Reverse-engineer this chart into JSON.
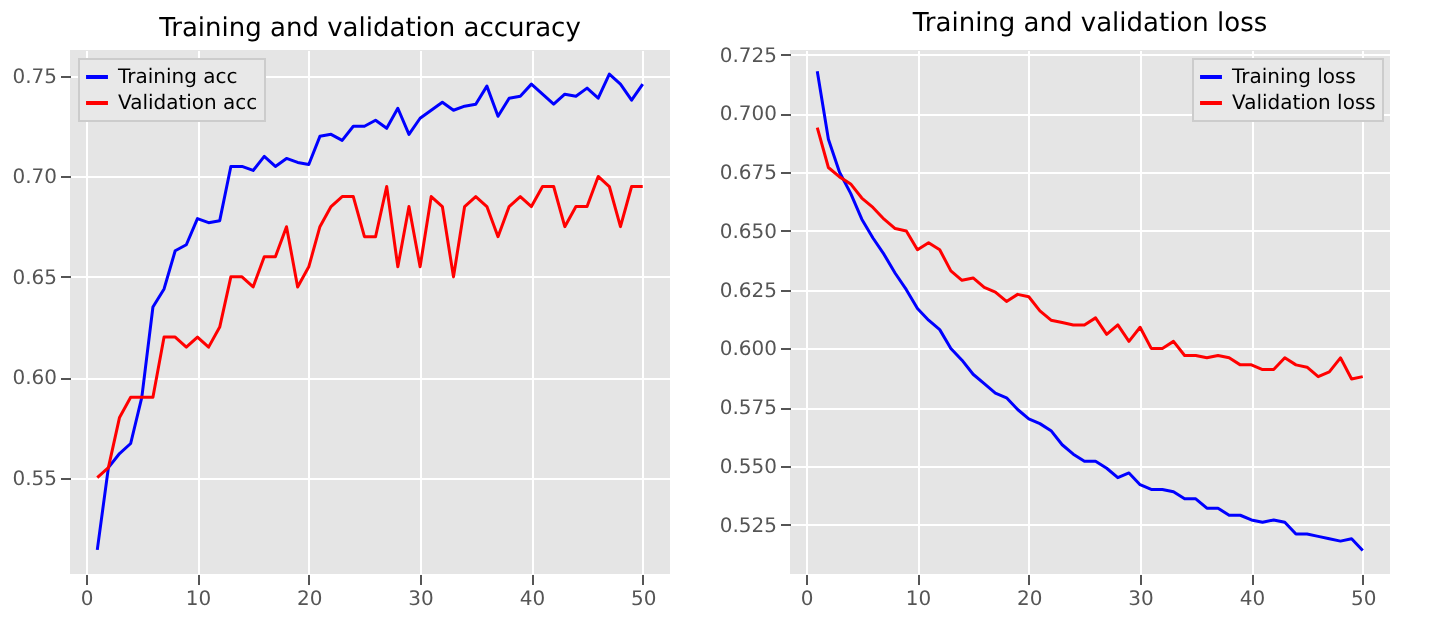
{
  "chart_data": [
    {
      "type": "line",
      "title": "Training and validation accuracy",
      "legend": "top left",
      "grid": true,
      "x": [
        1,
        2,
        3,
        4,
        5,
        6,
        7,
        8,
        9,
        10,
        11,
        12,
        13,
        14,
        15,
        16,
        17,
        18,
        19,
        20,
        21,
        22,
        23,
        24,
        25,
        26,
        27,
        28,
        29,
        30,
        31,
        32,
        33,
        34,
        35,
        36,
        37,
        38,
        39,
        40,
        41,
        42,
        43,
        44,
        45,
        46,
        47,
        48,
        49,
        50
      ],
      "xlim": [
        -1.45,
        52.45
      ],
      "xticks": [
        0,
        10,
        20,
        30,
        40,
        50
      ],
      "ylim": [
        0.502,
        0.763
      ],
      "yticks": [
        {
          "value": 0.55,
          "label": "0.55"
        },
        {
          "value": 0.6,
          "label": "0.60"
        },
        {
          "value": 0.65,
          "label": "0.65"
        },
        {
          "value": 0.7,
          "label": "0.70"
        },
        {
          "value": 0.75,
          "label": "0.75"
        }
      ],
      "series": [
        {
          "name": "Training acc",
          "color": "#0000ff",
          "values": [
            0.514,
            0.555,
            0.562,
            0.567,
            0.59,
            0.635,
            0.644,
            0.663,
            0.666,
            0.679,
            0.677,
            0.678,
            0.705,
            0.705,
            0.703,
            0.71,
            0.705,
            0.709,
            0.707,
            0.706,
            0.72,
            0.721,
            0.718,
            0.725,
            0.725,
            0.728,
            0.724,
            0.734,
            0.721,
            0.729,
            0.733,
            0.737,
            0.733,
            0.735,
            0.736,
            0.745,
            0.73,
            0.739,
            0.74,
            0.746,
            0.741,
            0.736,
            0.741,
            0.74,
            0.744,
            0.739,
            0.751,
            0.746,
            0.738,
            0.746
          ]
        },
        {
          "name": "Validation acc",
          "color": "#ff0000",
          "values": [
            0.55,
            0.555,
            0.58,
            0.59,
            0.59,
            0.59,
            0.62,
            0.62,
            0.615,
            0.62,
            0.615,
            0.625,
            0.65,
            0.65,
            0.645,
            0.66,
            0.66,
            0.675,
            0.645,
            0.655,
            0.675,
            0.685,
            0.69,
            0.69,
            0.67,
            0.67,
            0.695,
            0.655,
            0.685,
            0.655,
            0.69,
            0.685,
            0.65,
            0.685,
            0.69,
            0.685,
            0.67,
            0.685,
            0.69,
            0.685,
            0.695,
            0.695,
            0.675,
            0.685,
            0.685,
            0.7,
            0.695,
            0.675,
            0.695,
            0.695
          ]
        }
      ]
    },
    {
      "type": "line",
      "title": "Training and validation loss",
      "legend": "top right",
      "grid": true,
      "x": [
        1,
        2,
        3,
        4,
        5,
        6,
        7,
        8,
        9,
        10,
        11,
        12,
        13,
        14,
        15,
        16,
        17,
        18,
        19,
        20,
        21,
        22,
        23,
        24,
        25,
        26,
        27,
        28,
        29,
        30,
        31,
        32,
        33,
        34,
        35,
        36,
        37,
        38,
        39,
        40,
        41,
        42,
        43,
        44,
        45,
        46,
        47,
        48,
        49,
        50
      ],
      "xlim": [
        -1.45,
        52.45
      ],
      "xticks": [
        0,
        10,
        20,
        30,
        40,
        50
      ],
      "ylim": [
        0.504,
        0.727
      ],
      "yticks": [
        {
          "value": 0.525,
          "label": "0.525"
        },
        {
          "value": 0.55,
          "label": "0.550"
        },
        {
          "value": 0.575,
          "label": "0.575"
        },
        {
          "value": 0.6,
          "label": "0.600"
        },
        {
          "value": 0.625,
          "label": "0.625"
        },
        {
          "value": 0.65,
          "label": "0.650"
        },
        {
          "value": 0.675,
          "label": "0.675"
        },
        {
          "value": 0.7,
          "label": "0.700"
        },
        {
          "value": 0.725,
          "label": "0.725"
        }
      ],
      "series": [
        {
          "name": "Training loss",
          "color": "#0000ff",
          "values": [
            0.718,
            0.689,
            0.675,
            0.666,
            0.655,
            0.647,
            0.64,
            0.632,
            0.625,
            0.617,
            0.612,
            0.608,
            0.6,
            0.595,
            0.589,
            0.585,
            0.581,
            0.579,
            0.574,
            0.57,
            0.568,
            0.565,
            0.559,
            0.555,
            0.552,
            0.552,
            0.549,
            0.545,
            0.547,
            0.542,
            0.54,
            0.54,
            0.539,
            0.536,
            0.536,
            0.532,
            0.532,
            0.529,
            0.529,
            0.527,
            0.526,
            0.527,
            0.526,
            0.521,
            0.521,
            0.52,
            0.519,
            0.518,
            0.519,
            0.514
          ]
        },
        {
          "name": "Validation loss",
          "color": "#ff0000",
          "values": [
            0.694,
            0.677,
            0.673,
            0.67,
            0.664,
            0.66,
            0.655,
            0.651,
            0.65,
            0.642,
            0.645,
            0.642,
            0.633,
            0.629,
            0.63,
            0.626,
            0.624,
            0.62,
            0.623,
            0.622,
            0.616,
            0.612,
            0.611,
            0.61,
            0.61,
            0.613,
            0.606,
            0.61,
            0.603,
            0.609,
            0.6,
            0.6,
            0.603,
            0.597,
            0.597,
            0.596,
            0.597,
            0.596,
            0.593,
            0.593,
            0.591,
            0.591,
            0.596,
            0.593,
            0.592,
            0.588,
            0.59,
            0.596,
            0.587,
            0.588
          ]
        }
      ]
    }
  ]
}
